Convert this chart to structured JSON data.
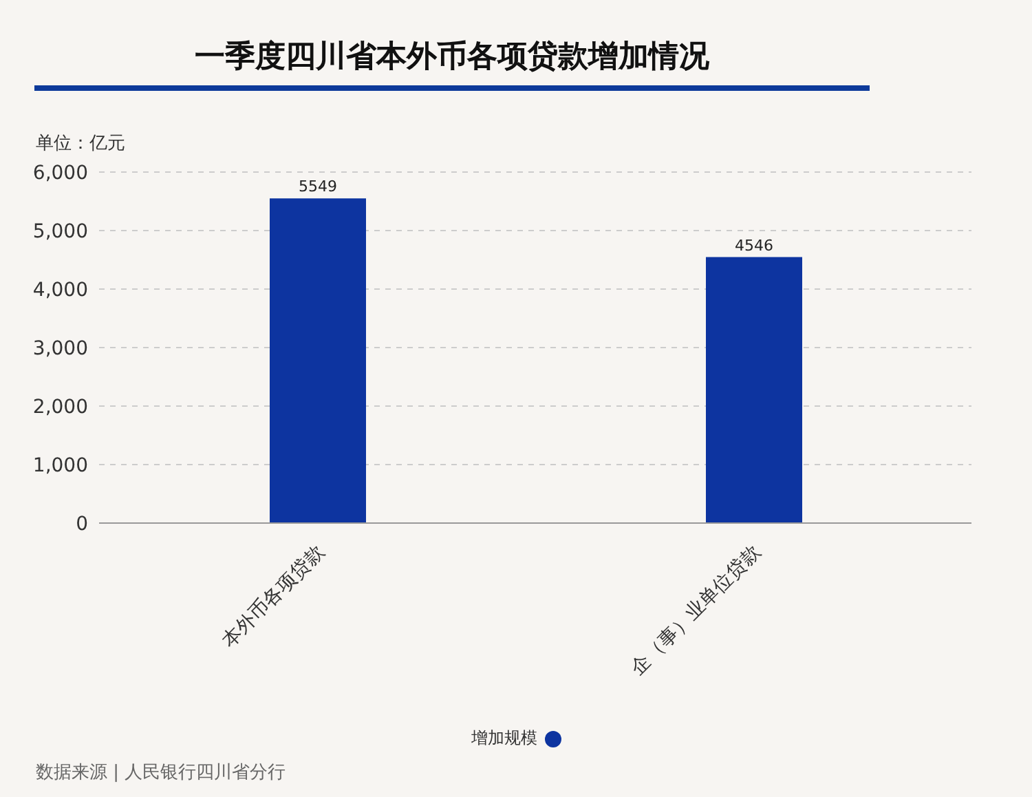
{
  "chart_data": {
    "type": "bar",
    "title": "一季度四川省本外币各项贷款增加情况",
    "ylabel": "单位：亿元",
    "categories": [
      "本外币各项贷款",
      "企（事）业单位贷款"
    ],
    "series": [
      {
        "name": "增加规模",
        "color": "#0d34a0",
        "values": [
          5549,
          4546
        ]
      }
    ],
    "ylim": [
      0,
      6000
    ],
    "yticks": [
      0,
      {
        "value": 1000,
        "label": "1,000"
      },
      {
        "value": 2000,
        "label": "2,000"
      },
      {
        "value": 3000,
        "label": "3,000"
      },
      {
        "value": 4000,
        "label": "4,000"
      },
      {
        "value": 5000,
        "label": "5,000"
      },
      {
        "value": 6000,
        "label": "6,000"
      }
    ],
    "grid": "y",
    "legend": "bottom",
    "data_labels": true,
    "annotations": [
      "数据来源 | 人民银行四川省分行"
    ]
  }
}
